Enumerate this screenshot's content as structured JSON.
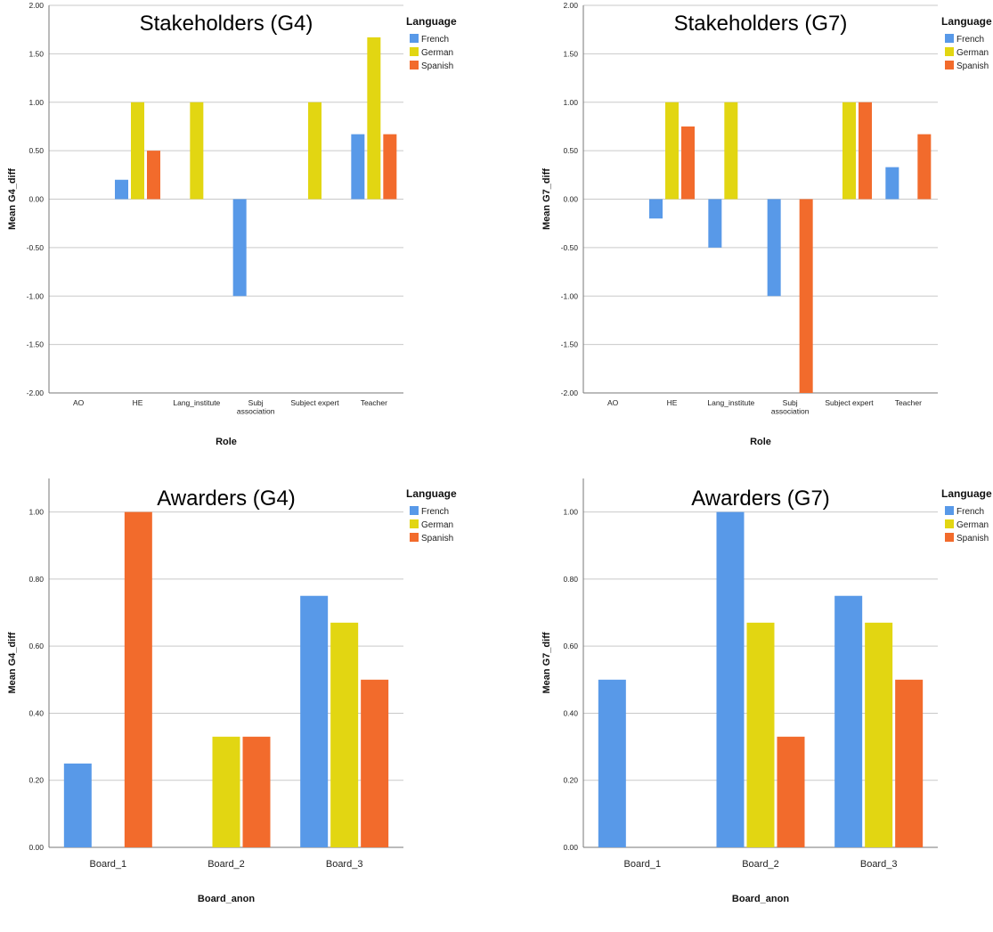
{
  "legend_title": "Language",
  "chart_data": [
    {
      "type": "bar",
      "title": "Stakeholders (G4)",
      "xlabel": "Role",
      "ylabel": "Mean G4_diff",
      "categories": [
        "AO",
        "HE",
        "Lang_institute",
        "Subj\nassociation",
        "Subject expert",
        "Teacher"
      ],
      "ylim": [
        -2,
        2
      ],
      "yticks": [
        "-2.00",
        "-1.50",
        "-1.00",
        "-0.50",
        "0.00",
        "0.50",
        "1.00",
        "1.50",
        "2.00"
      ],
      "legend_title": "Language",
      "series": [
        {
          "name": "French",
          "color": "#5899e8",
          "values": [
            null,
            0.2,
            null,
            -1.0,
            null,
            0.67
          ]
        },
        {
          "name": "German",
          "color": "#e2d612",
          "values": [
            null,
            1.0,
            1.0,
            null,
            1.0,
            1.67
          ]
        },
        {
          "name": "Spanish",
          "color": "#f26b2c",
          "values": [
            null,
            0.5,
            null,
            null,
            null,
            0.67
          ]
        }
      ]
    },
    {
      "type": "bar",
      "title": "Stakeholders (G7)",
      "xlabel": "Role",
      "ylabel": "Mean G7_diff",
      "categories": [
        "AO",
        "HE",
        "Lang_institute",
        "Subj\nassociation",
        "Subject expert",
        "Teacher"
      ],
      "ylim": [
        -2,
        2
      ],
      "yticks": [
        "-2.00",
        "-1.50",
        "-1.00",
        "-0.50",
        "0.00",
        "0.50",
        "1.00",
        "1.50",
        "2.00"
      ],
      "legend_title": "Language",
      "series": [
        {
          "name": "French",
          "color": "#5899e8",
          "values": [
            null,
            -0.2,
            -0.5,
            -1.0,
            null,
            0.33
          ]
        },
        {
          "name": "German",
          "color": "#e2d612",
          "values": [
            null,
            1.0,
            1.0,
            null,
            1.0,
            null
          ]
        },
        {
          "name": "Spanish",
          "color": "#f26b2c",
          "values": [
            null,
            0.75,
            null,
            -2.0,
            1.0,
            0.67
          ]
        }
      ]
    },
    {
      "type": "bar",
      "title": "Awarders (G4)",
      "xlabel": "Board_anon",
      "ylabel": "Mean G4_diff",
      "categories": [
        "Board_1",
        "Board_2",
        "Board_3"
      ],
      "ylim": [
        0,
        1.1
      ],
      "yticks": [
        "0.00",
        "0.20",
        "0.40",
        "0.60",
        "0.80",
        "1.00"
      ],
      "legend_title": "Language",
      "series": [
        {
          "name": "French",
          "color": "#5899e8",
          "values": [
            0.25,
            null,
            0.75
          ]
        },
        {
          "name": "German",
          "color": "#e2d612",
          "values": [
            null,
            0.33,
            0.67
          ]
        },
        {
          "name": "Spanish",
          "color": "#f26b2c",
          "values": [
            1.0,
            0.33,
            0.5
          ]
        }
      ]
    },
    {
      "type": "bar",
      "title": "Awarders (G7)",
      "xlabel": "Board_anon",
      "ylabel": "Mean G7_diff",
      "categories": [
        "Board_1",
        "Board_2",
        "Board_3"
      ],
      "ylim": [
        0,
        1.1
      ],
      "yticks": [
        "0.00",
        "0.20",
        "0.40",
        "0.60",
        "0.80",
        "1.00"
      ],
      "legend_title": "Language",
      "series": [
        {
          "name": "French",
          "color": "#5899e8",
          "values": [
            0.5,
            1.0,
            0.75
          ]
        },
        {
          "name": "German",
          "color": "#e2d612",
          "values": [
            null,
            0.67,
            0.67
          ]
        },
        {
          "name": "Spanish",
          "color": "#f26b2c",
          "values": [
            null,
            0.33,
            0.5
          ]
        }
      ]
    }
  ]
}
